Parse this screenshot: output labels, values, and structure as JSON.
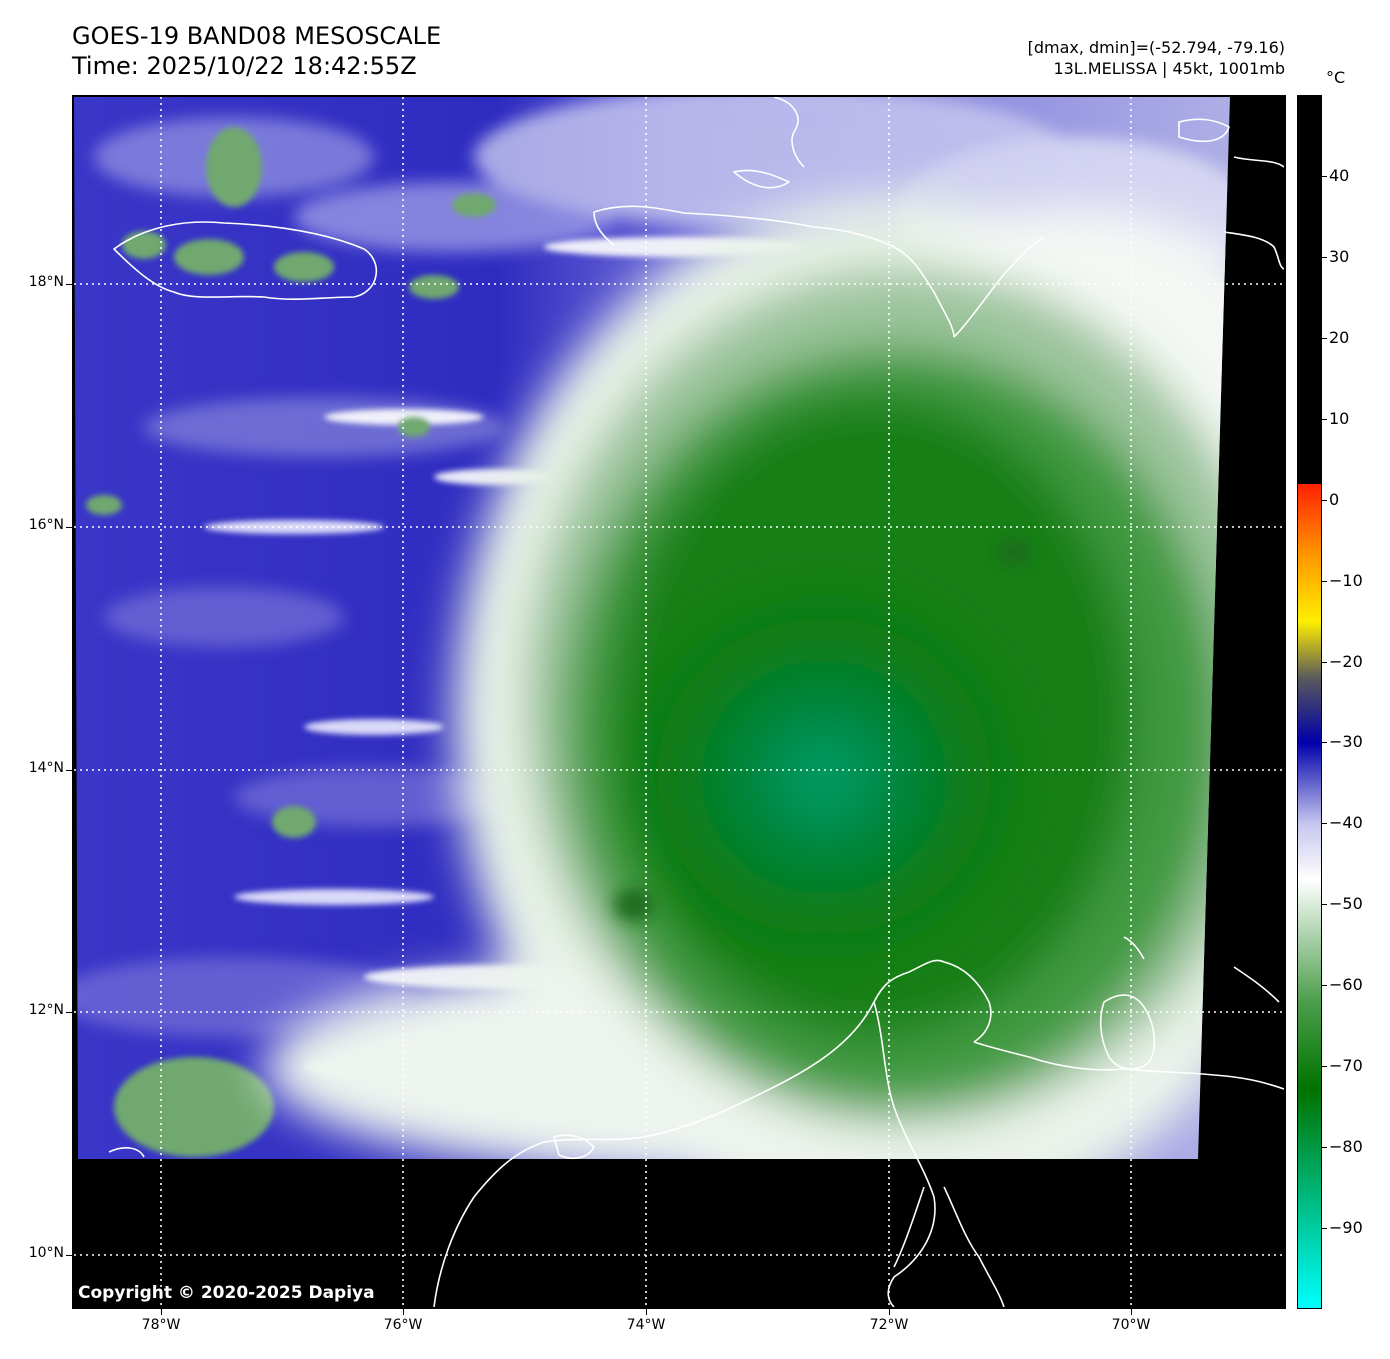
{
  "header": {
    "title_line1": "GOES-19 BAND08 MESOSCALE",
    "title_line2": "Time: 2025/10/22 18:42:55Z",
    "range_text": "[dmax, dmin]=(-52.794, -79.16)",
    "storm_text": "13L.MELISSA | 45kt, 1001mb"
  },
  "map": {
    "lat_labels": [
      "18°N",
      "16°N",
      "14°N",
      "12°N",
      "10°N"
    ],
    "lon_labels": [
      "78°W",
      "76°W",
      "74°W",
      "72°W",
      "70°W"
    ],
    "copyright": "Copyright © 2020-2025 Dapiya"
  },
  "colorbar": {
    "unit": "°C",
    "tick_labels": [
      "40",
      "30",
      "20",
      "10",
      "0",
      "−10",
      "−20",
      "−30",
      "−40",
      "−50",
      "−60",
      "−70",
      "−80",
      "−90"
    ],
    "range_min": -100,
    "range_max": 50,
    "colors": {
      "cyan": "#00ffff",
      "green": "#007300",
      "light_green": "#4c9e4c",
      "white": "#ffffff",
      "lavender": "#c5c5ee",
      "blue": "#0000aa",
      "grey": "#5a5a5a",
      "yellow": "#ffee00",
      "orange": "#ff9900",
      "red": "#ff2000",
      "black": "#000000"
    }
  }
}
